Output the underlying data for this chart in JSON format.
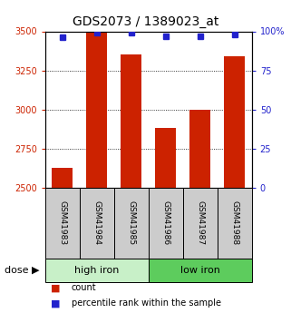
{
  "title": "GDS2073 / 1389023_at",
  "samples": [
    "GSM41983",
    "GSM41984",
    "GSM41985",
    "GSM41986",
    "GSM41987",
    "GSM41988"
  ],
  "counts": [
    2630,
    3500,
    3350,
    2880,
    3000,
    3340
  ],
  "percentiles": [
    96,
    99,
    99,
    97,
    97,
    98
  ],
  "ylim_left": [
    2500,
    3500
  ],
  "ylim_right": [
    0,
    100
  ],
  "yticks_left": [
    2500,
    2750,
    3000,
    3250,
    3500
  ],
  "yticks_right": [
    0,
    25,
    50,
    75,
    100
  ],
  "ytick_labels_right": [
    "0",
    "25",
    "50",
    "75",
    "100%"
  ],
  "groups": [
    {
      "label": "high iron",
      "samples": [
        0,
        1,
        2
      ],
      "color": "#c8f0c8"
    },
    {
      "label": "low iron",
      "samples": [
        3,
        4,
        5
      ],
      "color": "#5dcc5d"
    }
  ],
  "bar_color": "#cc2200",
  "square_color": "#2222cc",
  "left_tick_color": "#cc2200",
  "right_tick_color": "#2222cc",
  "title_fontsize": 10,
  "background_color": "#ffffff",
  "plot_bg_color": "#ffffff",
  "label_area_color": "#cccccc",
  "dose_label": "dose",
  "legend_count": "count",
  "legend_percentile": "percentile rank within the sample"
}
